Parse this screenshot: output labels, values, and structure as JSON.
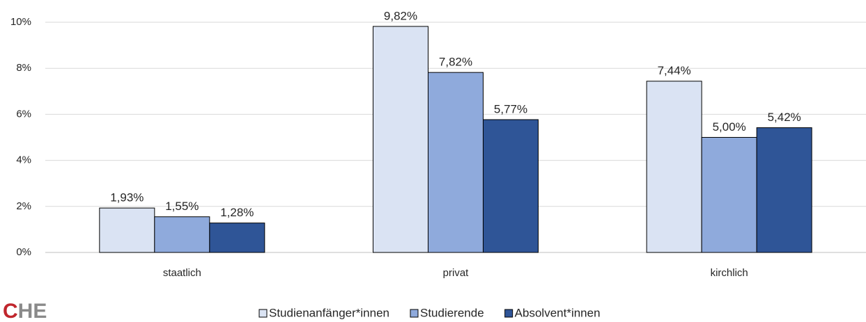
{
  "chart_data": {
    "type": "bar",
    "categories": [
      "staatlich",
      "privat",
      "kirchlich"
    ],
    "series": [
      {
        "name": "Studienanfänger*innen",
        "color": "#dae3f3",
        "values": [
          1.93,
          9.82,
          7.44
        ],
        "value_labels": [
          "1,93%",
          "9,82%",
          "7,44%"
        ]
      },
      {
        "name": "Studierende",
        "color": "#8faadc",
        "values": [
          1.55,
          7.82,
          5.0
        ],
        "value_labels": [
          "1,55%",
          "7,82%",
          "5,00%"
        ]
      },
      {
        "name": "Absolvent*innen",
        "color": "#2f5597",
        "values": [
          1.28,
          5.77,
          5.42
        ],
        "value_labels": [
          "1,28%",
          "5,77%",
          "5,42%"
        ]
      }
    ],
    "ylim": [
      0,
      10
    ],
    "yticks": [
      {
        "value": 0,
        "label": "0%"
      },
      {
        "value": 2,
        "label": "2%"
      },
      {
        "value": 4,
        "label": "4%"
      },
      {
        "value": 6,
        "label": "6%"
      },
      {
        "value": 8,
        "label": "8%"
      },
      {
        "value": 10,
        "label": "10%"
      }
    ],
    "grid": true,
    "legend": "bottom"
  },
  "logo": {
    "parts": [
      "C",
      "HE"
    ]
  }
}
